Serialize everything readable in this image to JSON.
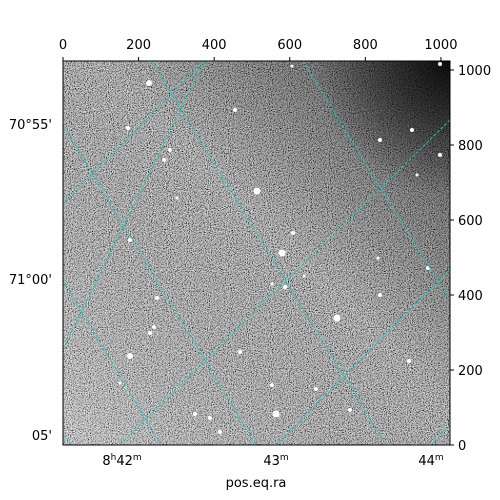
{
  "figure": {
    "xlabel": "pos.eq.ra",
    "top_axis": {
      "range": [
        0,
        1024
      ],
      "tick_labels": [
        "0",
        "200",
        "400",
        "600",
        "800",
        "1000"
      ],
      "tick_values": [
        0,
        200,
        400,
        600,
        800,
        1000
      ]
    },
    "right_axis": {
      "range": [
        0,
        1024
      ],
      "tick_labels": [
        "1000",
        "800",
        "600",
        "400",
        "200",
        "0"
      ],
      "tick_values": [
        1000,
        800,
        600,
        400,
        200,
        0
      ]
    },
    "bottom_axis_labels": [
      {
        "h": "8",
        "hsup": "h",
        "m": "42",
        "msup": "m"
      },
      {
        "m": "43",
        "msup": "m"
      },
      {
        "m": "44",
        "msup": "m"
      }
    ],
    "left_axis_labels": [
      "70°55'",
      "71°00'",
      "05'"
    ],
    "grid_color": "#20c8c8"
  }
}
